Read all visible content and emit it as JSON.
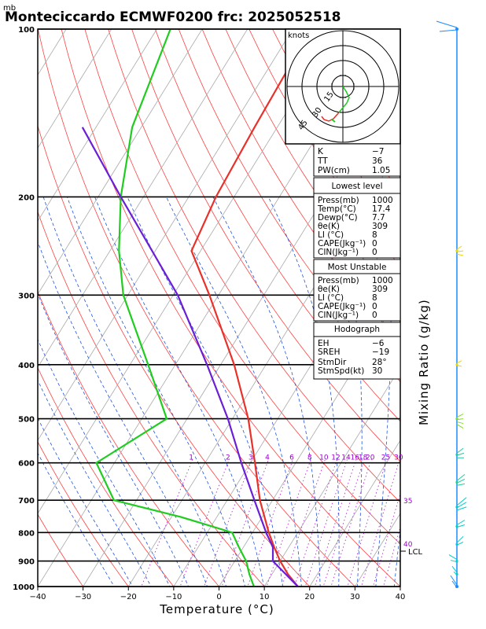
{
  "header": {
    "unit": "mb",
    "title": "Monteciccardo ECMWF0200 frc: 2025052518"
  },
  "chart_data": {
    "type": "line",
    "title": "Monteciccardo ECMWF0200 frc: 2025052518",
    "xlabel": "Temperature (°C)",
    "ylabel": "mb",
    "y_scale": "log pressure (skew-T)",
    "xlim": [
      -40,
      40
    ],
    "ylim": [
      1000,
      100
    ],
    "x_ticks": [
      "−40",
      "−30",
      "−20",
      "−10",
      "0",
      "10",
      "20",
      "30",
      "40"
    ],
    "y_ticks": [
      "100",
      "200",
      "300",
      "400",
      "500",
      "600",
      "700",
      "800",
      "900",
      "1000"
    ],
    "series": [
      {
        "color": "#e8312a",
        "pressure": [
          1000,
          950,
          900,
          850,
          800,
          700,
          600,
          500,
          400,
          300,
          250,
          200,
          150,
          100
        ],
        "values": [
          17.4,
          13.5,
          10.0,
          6.8,
          3.6,
          -2.8,
          -9.0,
          -16.5,
          -27.0,
          -42.0,
          -52.0,
          -54.0,
          -55.0,
          -56.0
        ]
      },
      {
        "color": "#1fcc1f",
        "pressure": [
          1000,
          950,
          900,
          850,
          800,
          750,
          700,
          600,
          500,
          400,
          300,
          250,
          200,
          150,
          100
        ],
        "values": [
          7.7,
          5.0,
          2.5,
          -1.0,
          -4.5,
          -18.0,
          -35.0,
          -44.0,
          -34.5,
          -46.0,
          -61.0,
          -68.0,
          -75.0,
          -82.0,
          -87.0
        ]
      },
      {
        "color": "#6a1fd6",
        "pressure": [
          1000,
          900,
          850,
          800,
          700,
          600,
          500,
          400,
          300,
          200,
          150
        ],
        "values": [
          17.4,
          8.4,
          6.5,
          3.0,
          -4.0,
          -12.0,
          -21.0,
          -33.0,
          -49.0,
          -75.0,
          -93.0
        ]
      }
    ],
    "mixing_ratio_labels": [
      {
        "text": "1",
        "value": 1
      },
      {
        "text": "2",
        "value": 2
      },
      {
        "text": "3",
        "value": 3
      },
      {
        "text": "4",
        "value": 4
      },
      {
        "text": "6",
        "value": 6
      },
      {
        "text": "8",
        "value": 8
      },
      {
        "text": "10",
        "value": 10
      },
      {
        "text": "12",
        "value": 12
      },
      {
        "text": "14",
        "value": 14
      },
      {
        "text": "16",
        "value": 16
      },
      {
        "text": "18",
        "value": 18
      },
      {
        "text": "20",
        "value": 20
      },
      {
        "text": "25",
        "value": 25
      },
      {
        "text": "30",
        "value": 30
      }
    ],
    "mixing_ratio_side_labels": [
      "35",
      "40"
    ],
    "lcl_label": "LCL",
    "mixing_ratio_axis_label": "Mixing Ratio (g/kg)",
    "grid": true
  },
  "hodograph": {
    "unit_label": "knots",
    "ring_labels": [
      "15",
      "30",
      "45"
    ]
  },
  "indices": [
    {
      "label": "K",
      "value": "−7"
    },
    {
      "label": "TT",
      "value": "36"
    },
    {
      "label": "PW(cm)",
      "value": "1.05"
    }
  ],
  "lowest_level": {
    "header": "Lowest level",
    "rows": [
      {
        "label": "Press(mb)",
        "value": "1000"
      },
      {
        "label": "Temp(°C)",
        "value": "17.4"
      },
      {
        "label": "Dewp(°C)",
        "value": "7.7"
      },
      {
        "label": "θe(K)",
        "value": "309"
      },
      {
        "label": "LI (°C)",
        "value": "8"
      },
      {
        "label": "CAPE(Jkg⁻¹)",
        "value": "0"
      },
      {
        "label": "CIN(Jkg⁻¹)",
        "value": "0"
      }
    ]
  },
  "most_unstable": {
    "header": "Most Unstable",
    "rows": [
      {
        "label": "Press(mb)",
        "value": "1000"
      },
      {
        "label": "θe(K)",
        "value": "309"
      },
      {
        "label": "LI (°C)",
        "value": "8"
      },
      {
        "label": "CAPE(Jkg⁻¹)",
        "value": "0"
      },
      {
        "label": "CIN(Jkg⁻¹)",
        "value": "0"
      }
    ]
  },
  "hodograph_box": {
    "header": "Hodograph",
    "rows": [
      {
        "label": "EH",
        "value": "−6"
      },
      {
        "label": "SREH",
        "value": "−19"
      },
      {
        "label": "StmDir",
        "value": "28°"
      },
      {
        "label": "StmSpd(kt)",
        "value": "30"
      }
    ]
  },
  "wind_barb_colors": [
    "#1a8cff",
    "#e6d600",
    "#7ddc1f",
    "#1fcc9a",
    "#00cccc"
  ]
}
